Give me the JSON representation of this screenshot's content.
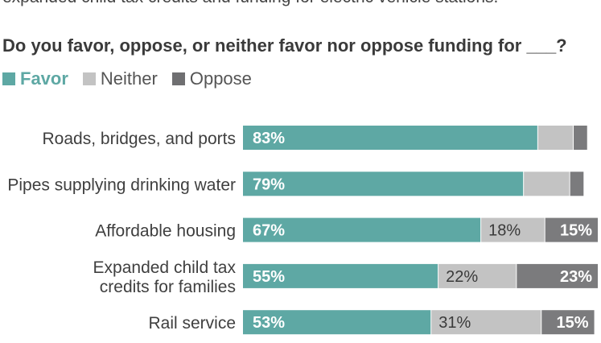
{
  "intro_text": "expanded child tax credits and funding for electric vehicle stations.",
  "question": "Do you favor, oppose, or neither favor nor oppose funding for ___?",
  "legend": [
    {
      "label": "Favor",
      "color": "#5ea8a4"
    },
    {
      "label": "Neither",
      "color": "#c3c3c3"
    },
    {
      "label": "Oppose",
      "color": "#7b7b7d"
    }
  ],
  "chart_data": {
    "type": "bar",
    "orientation": "horizontal",
    "stacked": true,
    "xlim": [
      0,
      100
    ],
    "grid": false,
    "categories": [
      [
        "Roads, bridges, and ports"
      ],
      [
        "Pipes supplying drinking water"
      ],
      [
        "Affordable housing"
      ],
      [
        "Expanded child tax",
        "credits for families"
      ],
      [
        "Rail service"
      ]
    ],
    "series": [
      {
        "name": "Favor",
        "color": "#5ea8a4",
        "values": [
          83,
          79,
          67,
          55,
          53
        ],
        "labels": [
          "83%",
          "79%",
          "67%",
          "55%",
          "53%"
        ]
      },
      {
        "name": "Neither",
        "color": "#c3c3c3",
        "values": [
          10,
          13,
          18,
          22,
          31
        ],
        "labels": [
          "",
          "",
          "18%",
          "22%",
          "31%"
        ]
      },
      {
        "name": "Oppose",
        "color": "#7b7b7d",
        "values": [
          4,
          4,
          15,
          23,
          15
        ],
        "labels": [
          "",
          "",
          "15%",
          "23%",
          "15%"
        ]
      }
    ]
  }
}
